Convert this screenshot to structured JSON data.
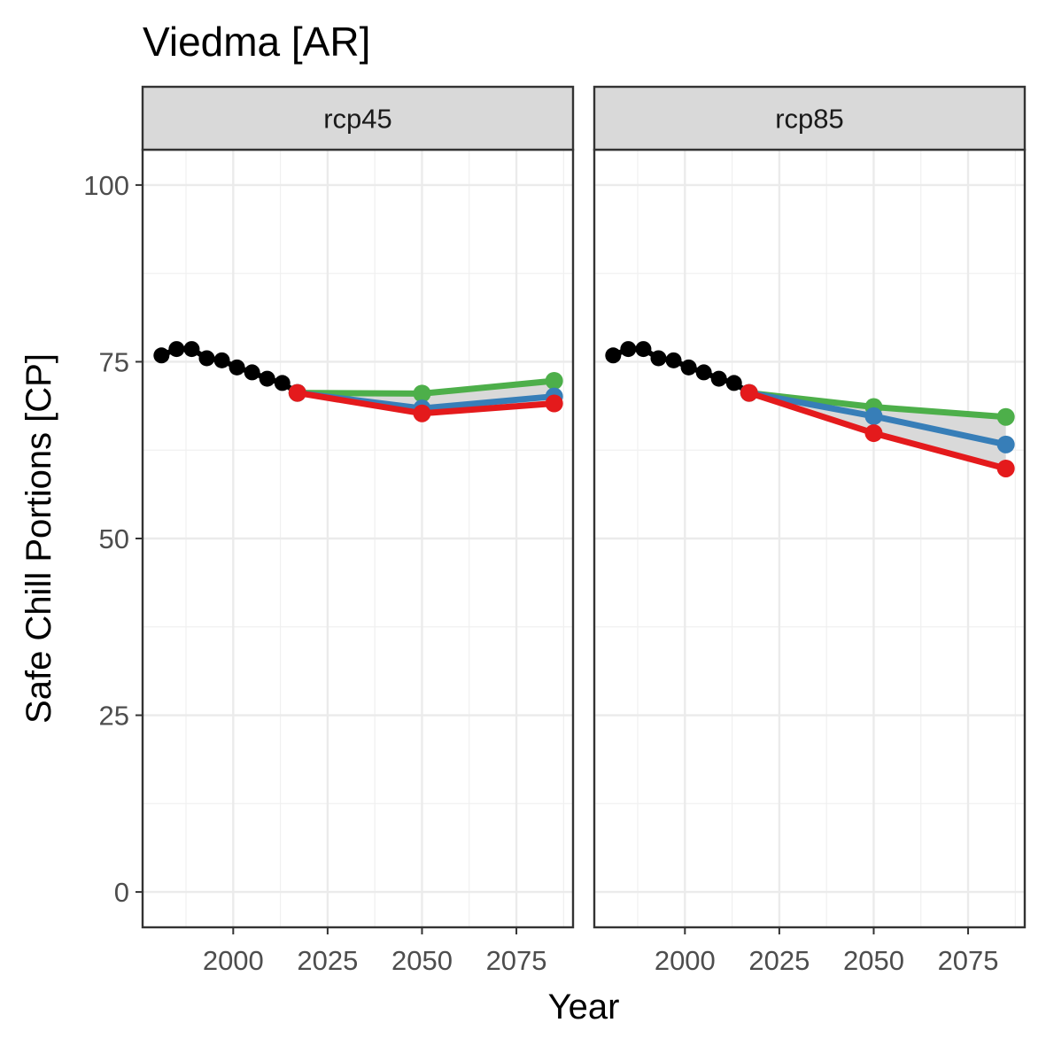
{
  "chart_data": {
    "type": "line",
    "title": "Viedma [AR]",
    "xlabel": "Year",
    "ylabel": "Safe Chill Portions [CP]",
    "xlim": [
      1976,
      2090
    ],
    "ylim": [
      -5,
      105
    ],
    "x_ticks": [
      2000,
      2025,
      2050,
      2075
    ],
    "y_ticks": [
      0,
      25,
      50,
      75,
      100
    ],
    "x_tick_labels": [
      "2000",
      "2025",
      "2050",
      "2075"
    ],
    "y_tick_labels": [
      "0",
      "25",
      "50",
      "75",
      "100"
    ],
    "grid": true,
    "legend": "none",
    "colors": {
      "historic": "#000000",
      "high": "#4daf4a",
      "mid": "#377eb8",
      "low": "#e41a1c",
      "band": "#d9d9d9"
    },
    "historic": {
      "x": [
        1981,
        1985,
        1989,
        1993,
        1997,
        2001,
        2005,
        2009,
        2013
      ],
      "y": [
        75.9,
        76.8,
        76.8,
        75.5,
        75.2,
        74.2,
        73.5,
        72.6,
        72.0
      ]
    },
    "panels": [
      {
        "strip": "rcp45",
        "x": [
          2017,
          2050,
          2085
        ],
        "series": [
          {
            "key": "high",
            "values": [
              70.6,
              70.5,
              72.3
            ]
          },
          {
            "key": "mid",
            "values": [
              70.6,
              68.4,
              70.1
            ]
          },
          {
            "key": "low",
            "values": [
              70.6,
              67.7,
              69.1
            ]
          }
        ]
      },
      {
        "strip": "rcp85",
        "x": [
          2017,
          2050,
          2085
        ],
        "series": [
          {
            "key": "high",
            "values": [
              70.6,
              68.6,
              67.2
            ]
          },
          {
            "key": "mid",
            "values": [
              70.6,
              67.3,
              63.3
            ]
          },
          {
            "key": "low",
            "values": [
              70.6,
              64.9,
              59.9
            ]
          }
        ]
      }
    ]
  }
}
